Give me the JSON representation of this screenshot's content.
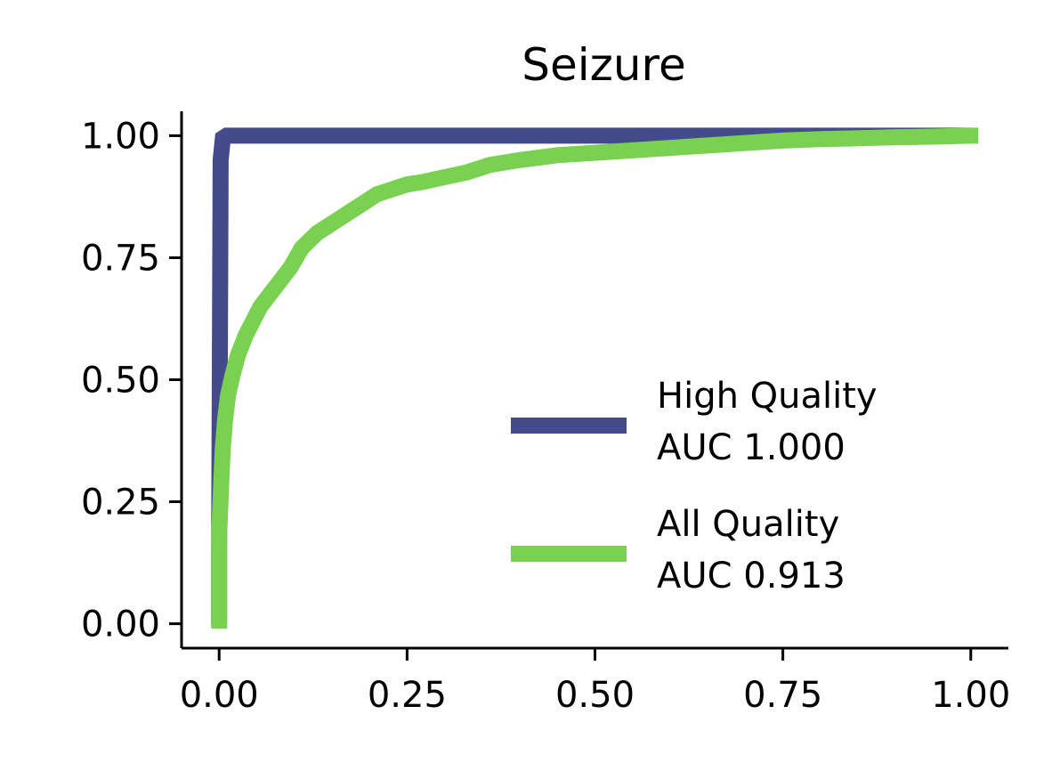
{
  "chart_data": {
    "type": "line",
    "title": "Seizure",
    "xlabel": "",
    "ylabel": "",
    "xlim": [
      -0.05,
      1.05
    ],
    "ylim": [
      -0.05,
      1.05
    ],
    "xticks": [
      "0.00",
      "0.25",
      "0.50",
      "0.75",
      "1.00"
    ],
    "yticks": [
      "0.00",
      "0.25",
      "0.50",
      "0.75",
      "1.00"
    ],
    "grid": false,
    "legend_position": "lower-right",
    "series": [
      {
        "name": "High Quality",
        "auc_label": "AUC 1.000",
        "color": "#444a8a",
        "x": [
          0.0,
          0.0,
          0.002,
          0.005,
          0.01,
          1.0
        ],
        "y": [
          0.0,
          0.15,
          0.95,
          0.995,
          1.0,
          1.0
        ]
      },
      {
        "name": "All Quality",
        "auc_label": "AUC 0.913",
        "color": "#7ad151",
        "x": [
          0.0,
          0.0,
          0.001,
          0.003,
          0.005,
          0.008,
          0.012,
          0.018,
          0.025,
          0.035,
          0.045,
          0.055,
          0.065,
          0.08,
          0.095,
          0.11,
          0.13,
          0.15,
          0.17,
          0.19,
          0.21,
          0.23,
          0.25,
          0.27,
          0.3,
          0.33,
          0.36,
          0.4,
          0.45,
          0.5,
          0.55,
          0.6,
          0.65,
          0.7,
          0.75,
          0.8,
          0.85,
          0.9,
          0.95,
          1.0,
          1.01
        ],
        "y": [
          -0.01,
          0.18,
          0.22,
          0.3,
          0.36,
          0.42,
          0.47,
          0.51,
          0.55,
          0.59,
          0.62,
          0.65,
          0.67,
          0.7,
          0.73,
          0.77,
          0.8,
          0.82,
          0.84,
          0.86,
          0.88,
          0.89,
          0.9,
          0.905,
          0.915,
          0.925,
          0.94,
          0.95,
          0.96,
          0.965,
          0.97,
          0.975,
          0.98,
          0.985,
          0.99,
          0.993,
          0.995,
          0.997,
          0.998,
          1.0,
          1.0
        ]
      }
    ]
  }
}
